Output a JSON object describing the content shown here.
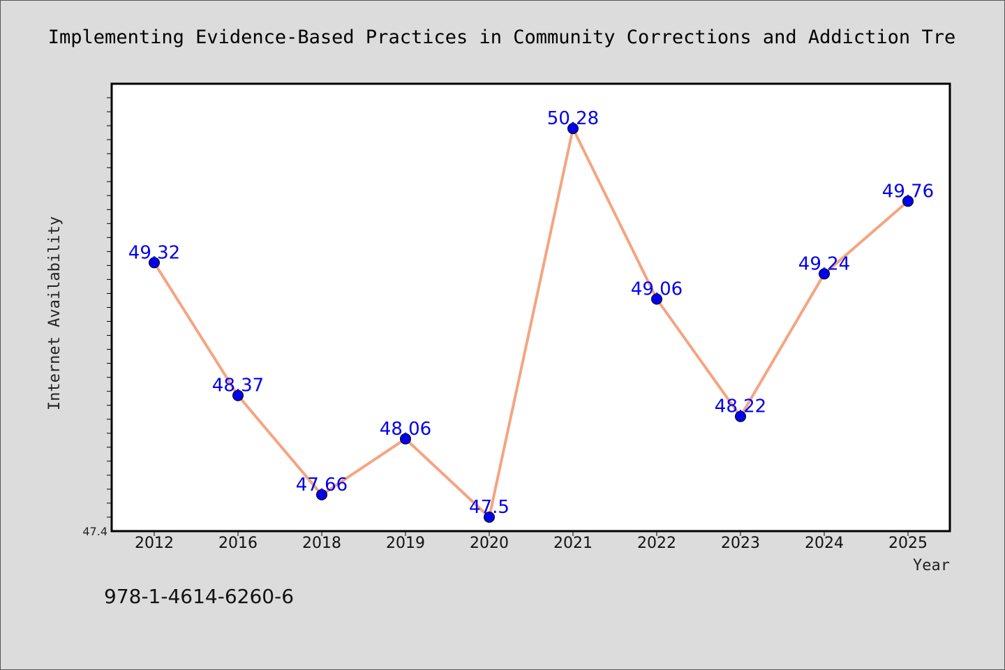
{
  "chart_data": {
    "type": "line",
    "title": "Implementing Evidence-Based Practices in Community Corrections and Addiction Tre",
    "xlabel": "Year",
    "ylabel": "Internet Availability",
    "categories": [
      "2012",
      "2016",
      "2018",
      "2019",
      "2020",
      "2021",
      "2022",
      "2023",
      "2024",
      "2025"
    ],
    "series": [
      {
        "values": [
          49.32,
          48.37,
          47.66,
          48.06,
          47.5,
          50.28,
          49.06,
          48.22,
          49.24,
          49.76
        ],
        "data_labels": [
          "49.32",
          "48.37",
          "47.66",
          "48.06",
          "47.5",
          "50.28",
          "49.06",
          "48.22",
          "49.24",
          "49.76"
        ]
      }
    ],
    "ylim": [
      47.4,
      50.6
    ],
    "y_tick_label": "47.4",
    "grid": false,
    "legend": "none",
    "colors": {
      "line": "#f4a582",
      "marker": "#0000ee",
      "label": "#0000ee",
      "plot_background": "#ffffff",
      "figure_background": "#dcdcdc"
    }
  },
  "footer": {
    "isbn": "978-1-4614-6260-6"
  }
}
